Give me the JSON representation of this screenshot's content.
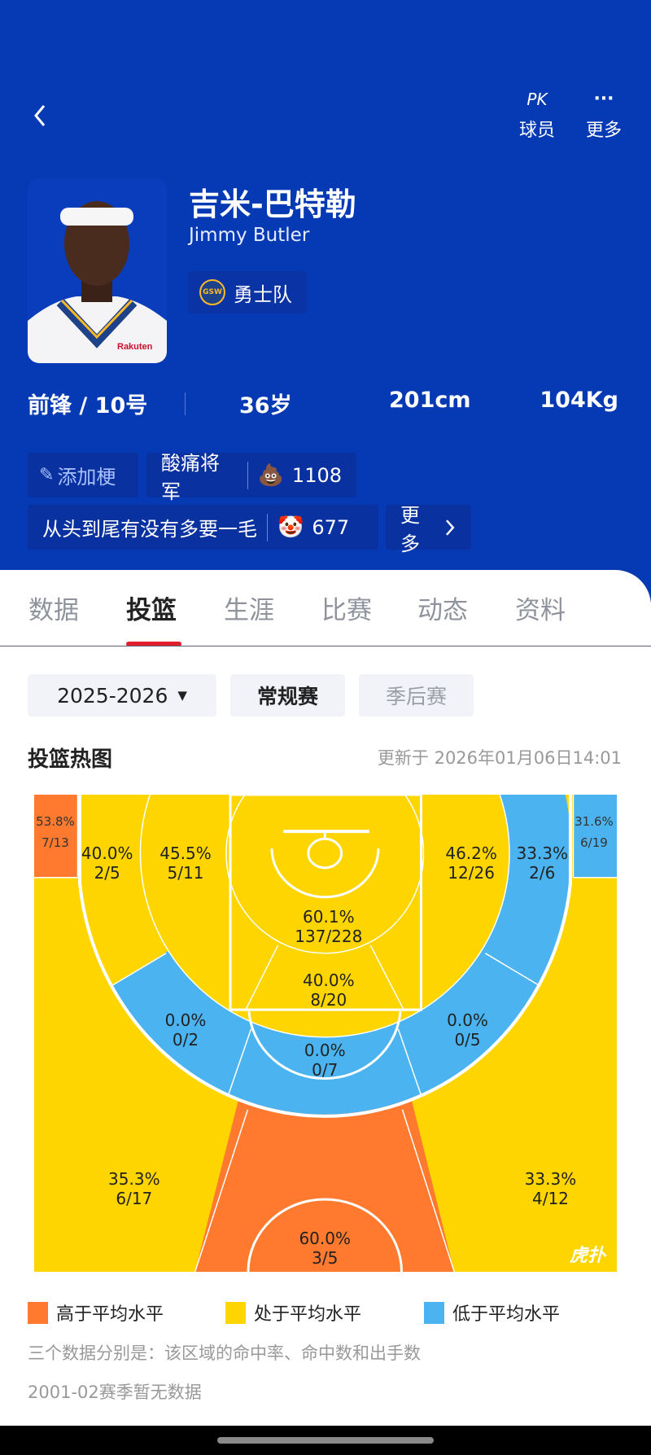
{
  "header": {
    "pk_icon": "PK",
    "pk_label": "球员",
    "more_icon": "···",
    "more_label": "更多"
  },
  "player": {
    "name_cn": "吉米-巴特勒",
    "name_en": "Jimmy Butler",
    "team": "勇士队",
    "team_logo_text": "GSW",
    "position": "前锋 / 10号",
    "age": "36岁",
    "height": "201cm",
    "weight": "104Kg"
  },
  "tags": {
    "add_label": "添加梗",
    "items": [
      {
        "text": "酸痛将军",
        "emoji": "💩",
        "count": "1108"
      },
      {
        "text": "从头到尾有没有多要一毛",
        "emoji": "🤡",
        "count": "677"
      }
    ],
    "more_label": "更多"
  },
  "tabs": [
    {
      "label": "数据",
      "active": false
    },
    {
      "label": "投篮",
      "active": true
    },
    {
      "label": "生涯",
      "active": false
    },
    {
      "label": "比赛",
      "active": false
    },
    {
      "label": "动态",
      "active": false
    },
    {
      "label": "资料",
      "active": false
    }
  ],
  "filters": {
    "season": "2025-2026",
    "season_arrow": "▼",
    "regular": "常规赛",
    "playoffs": "季后赛"
  },
  "heatmap": {
    "title": "投篮热图",
    "updated": "更新于 2026年01月06日14:01",
    "colors": {
      "above": "#FF7A2E",
      "average": "#FFD500",
      "below": "#4BB4F0"
    },
    "zones": [
      {
        "pct": "53.8%",
        "made_att": "7/13",
        "level": "above"
      },
      {
        "pct": "40.0%",
        "made_att": "2/5",
        "level": "average"
      },
      {
        "pct": "45.5%",
        "made_att": "5/11",
        "level": "average"
      },
      {
        "pct": "60.1%",
        "made_att": "137/228",
        "level": "average"
      },
      {
        "pct": "40.0%",
        "made_att": "8/20",
        "level": "average"
      },
      {
        "pct": "46.2%",
        "made_att": "12/26",
        "level": "average"
      },
      {
        "pct": "33.3%",
        "made_att": "2/6",
        "level": "below"
      },
      {
        "pct": "31.6%",
        "made_att": "6/19",
        "level": "below"
      },
      {
        "pct": "0.0%",
        "made_att": "0/2",
        "level": "below"
      },
      {
        "pct": "0.0%",
        "made_att": "0/7",
        "level": "below"
      },
      {
        "pct": "0.0%",
        "made_att": "0/5",
        "level": "below"
      },
      {
        "pct": "35.3%",
        "made_att": "6/17",
        "level": "average"
      },
      {
        "pct": "33.3%",
        "made_att": "4/12",
        "level": "average"
      },
      {
        "pct": "60.0%",
        "made_att": "3/5",
        "level": "above"
      }
    ],
    "watermark": "虎扑"
  },
  "legend": [
    {
      "label": "高于平均水平",
      "color": "#FF7A2E"
    },
    {
      "label": "处于平均水平",
      "color": "#FFD500"
    },
    {
      "label": "低于平均水平",
      "color": "#4BB4F0"
    }
  ],
  "notes": {
    "explain": "三个数据分别是：该区域的命中率、命中数和出手数",
    "no_data": "2001-02赛季暂无数据"
  }
}
